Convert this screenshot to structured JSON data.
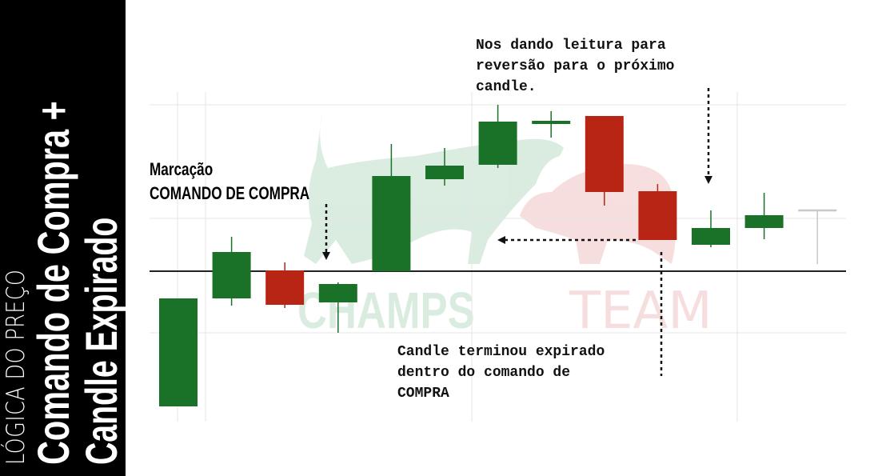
{
  "sidebar": {
    "line1": "LÓGICA DO PREÇO",
    "line2": "Comando de Compra +",
    "line3": "Candle Expirado"
  },
  "watermark": {
    "logo_text_1": "CHAMPS",
    "logo_text_2": "TEAM"
  },
  "annotations": {
    "marcacao_1": "Marcação",
    "marcacao_2": "COMANDO DE COMPRA",
    "reversal_1": "Nos dando leitura para",
    "reversal_2": "reversão para o próximo",
    "reversal_3": "candle.",
    "expired_1": "Candle terminou expirado",
    "expired_2": "dentro do comando de",
    "expired_3": "COMPRA"
  },
  "chart_data": {
    "type": "candlestick",
    "title": "",
    "xlabel": "",
    "ylabel": "",
    "ylim": [
      -18.8,
      22.4
    ],
    "grid": true,
    "gridlines_y": [
      20.8,
      6.6,
      -7.7
    ],
    "level_line": 0,
    "colors": {
      "up": "#1a7228",
      "down": "#b82514",
      "neutral": "#c8c8c8",
      "level": "#222222",
      "grid": "#e6e6e6"
    },
    "candles": [
      {
        "open": -16.9,
        "close": -3.4,
        "high": -3.4,
        "low": -16.9
      },
      {
        "open": -3.4,
        "close": 2.4,
        "high": 4.3,
        "low": -4.3
      },
      {
        "open": 0.1,
        "close": -4.2,
        "high": 1.1,
        "low": -4.6
      },
      {
        "open": -3.9,
        "close": -1.6,
        "high": -1.4,
        "low": -7.7
      },
      {
        "open": 0.0,
        "close": 11.9,
        "high": 15.9,
        "low": 0.0
      },
      {
        "open": 11.5,
        "close": 13.2,
        "high": 15.4,
        "low": 10.7
      },
      {
        "open": 13.3,
        "close": 18.7,
        "high": 20.8,
        "low": 12.9
      },
      {
        "open": 18.4,
        "close": 18.8,
        "high": 20.0,
        "low": 16.7
      },
      {
        "open": 19.4,
        "close": 9.9,
        "high": 19.4,
        "low": 8.2
      },
      {
        "open": 10.0,
        "close": 3.9,
        "high": 10.9,
        "low": 3.9
      },
      {
        "open": 3.3,
        "close": 5.4,
        "high": 7.6,
        "low": 3.0
      },
      {
        "open": 5.4,
        "close": 7.0,
        "high": 9.8,
        "low": 4.0
      },
      {
        "open": 7.6,
        "close": 7.6,
        "high": 7.6,
        "low": 0.9,
        "neutral": true
      }
    ]
  }
}
